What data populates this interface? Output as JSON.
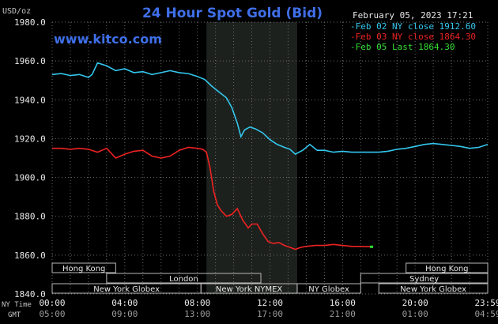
{
  "header": {
    "title": "24 Hour Spot Gold (Bid)",
    "date": "February 05, 2023 17:21",
    "unit": "USD/oz",
    "watermark": "www.kitco.com"
  },
  "legend": [
    {
      "label": "Feb 02 NY close 1912.60",
      "color": "#33c6ee"
    },
    {
      "label": "Feb 03 NY close 1864.30",
      "color": "#ee2222"
    },
    {
      "label": "Feb 05 Last 1864.30",
      "color": "#33dd33"
    }
  ],
  "colors": {
    "background": "#000000",
    "grid": "#6b6b6b",
    "highlight": "#1d211d",
    "title": "#3f6fe8",
    "watermark": "#3f6fe8",
    "text": "#e8e8e8",
    "label": "#c4c4c4",
    "session_bar": "#b8b8b8"
  },
  "axis": {
    "time_label_ny": "NY Time",
    "time_label_gmt": "GMT",
    "x_ny": [
      "00:00",
      "04:00",
      "08:00",
      "12:00",
      "16:00",
      "20:00",
      "23:59"
    ],
    "x_gmt": [
      "05:00",
      "09:00",
      "13:00",
      "17:00",
      "21:00",
      "01:00",
      "04:59"
    ]
  },
  "chart_data": {
    "type": "line",
    "xlabel": "NY Time",
    "ylabel": "USD/oz",
    "xlim": [
      0,
      24
    ],
    "ylim": [
      1840,
      1980
    ],
    "y_ticks": [
      "1980.0",
      "1960.0",
      "1940.0",
      "1920.0",
      "1900.0",
      "1880.0",
      "1860.0",
      "1840.0"
    ],
    "highlight_hours": [
      8.5,
      13.5
    ],
    "series": [
      {
        "name": "Feb 02 NY close 1912.60",
        "color": "#33c6ee",
        "x": [
          0,
          0.5,
          1.0,
          1.5,
          2.0,
          2.2,
          2.5,
          3.0,
          3.5,
          4.0,
          4.5,
          5.0,
          5.5,
          6.0,
          6.5,
          7.0,
          7.5,
          8.0,
          8.4,
          8.8,
          9.2,
          9.6,
          9.9,
          10.2,
          10.4,
          10.6,
          10.9,
          11.2,
          11.6,
          12.0,
          12.4,
          12.8,
          13.1,
          13.4,
          13.8,
          14.2,
          14.6,
          15.0,
          15.5,
          16.0,
          16.5,
          17.0,
          17.5,
          18.0,
          18.5,
          19.0,
          19.5,
          20.0,
          20.5,
          21.0,
          21.5,
          22.0,
          22.5,
          23.0,
          23.5,
          24.0
        ],
        "values": [
          1953,
          1953.5,
          1952.5,
          1953,
          1951.5,
          1953,
          1959,
          1957.5,
          1955,
          1956,
          1954,
          1954.5,
          1953,
          1954,
          1955,
          1954,
          1953.5,
          1952,
          1950.5,
          1947,
          1944,
          1941,
          1936,
          1928,
          1921,
          1924.5,
          1926,
          1925,
          1923,
          1919.5,
          1917,
          1915.5,
          1914.5,
          1912,
          1914,
          1917,
          1914,
          1914,
          1913,
          1913.5,
          1913,
          1913,
          1913,
          1913,
          1913.5,
          1914.5,
          1915,
          1916,
          1917,
          1917.5,
          1917,
          1916.5,
          1916,
          1915,
          1915.5,
          1917
        ]
      },
      {
        "name": "Feb 03 NY close 1864.30",
        "color": "#ee2222",
        "x": [
          0,
          0.5,
          1.0,
          1.5,
          2.0,
          2.5,
          3.0,
          3.5,
          4.0,
          4.5,
          5.0,
          5.5,
          6.0,
          6.5,
          7.0,
          7.5,
          8.0,
          8.3,
          8.5,
          8.7,
          8.9,
          9.1,
          9.3,
          9.6,
          9.9,
          10.2,
          10.5,
          10.8,
          11.0,
          11.3,
          11.6,
          11.9,
          12.2,
          12.5,
          12.8,
          13.1,
          13.4,
          13.7,
          14.0,
          14.5,
          15.0,
          15.5,
          16.0,
          16.5,
          17.0,
          17.6
        ],
        "values": [
          1915,
          1915,
          1914.5,
          1915,
          1914.5,
          1913,
          1915,
          1910,
          1912,
          1913.5,
          1914,
          1911,
          1910,
          1911,
          1914,
          1915.5,
          1915,
          1914.5,
          1913,
          1905,
          1893,
          1886,
          1883,
          1880,
          1881,
          1884,
          1878,
          1874,
          1876,
          1876,
          1871,
          1867,
          1866,
          1866.5,
          1865,
          1864,
          1863,
          1864,
          1864.5,
          1865,
          1865,
          1865.5,
          1865,
          1864.5,
          1864.5,
          1864.3
        ]
      },
      {
        "name": "Feb 05 Last 1864.30",
        "color": "#33dd33",
        "x": [
          17.6
        ],
        "values": [
          1864.3
        ]
      }
    ]
  },
  "sessions": [
    {
      "label": "Hong Kong",
      "start": 0,
      "end": 3.5,
      "row": 0
    },
    {
      "label": "Hong Kong",
      "start": 19.5,
      "end": 24,
      "row": 0
    },
    {
      "label": "London",
      "start": 3,
      "end": 11.5,
      "row": 1
    },
    {
      "label": "Sydney",
      "start": 17,
      "end": 24,
      "row": 1
    },
    {
      "label": "New York Globex",
      "start": 0,
      "end": 8.2,
      "row": 2
    },
    {
      "label": "New York NYMEX",
      "start": 8.2,
      "end": 13.5,
      "row": 2
    },
    {
      "label": "NY Globex",
      "start": 13.5,
      "end": 17,
      "row": 2
    },
    {
      "label": "New York Globex",
      "start": 18,
      "end": 24,
      "row": 2
    }
  ]
}
